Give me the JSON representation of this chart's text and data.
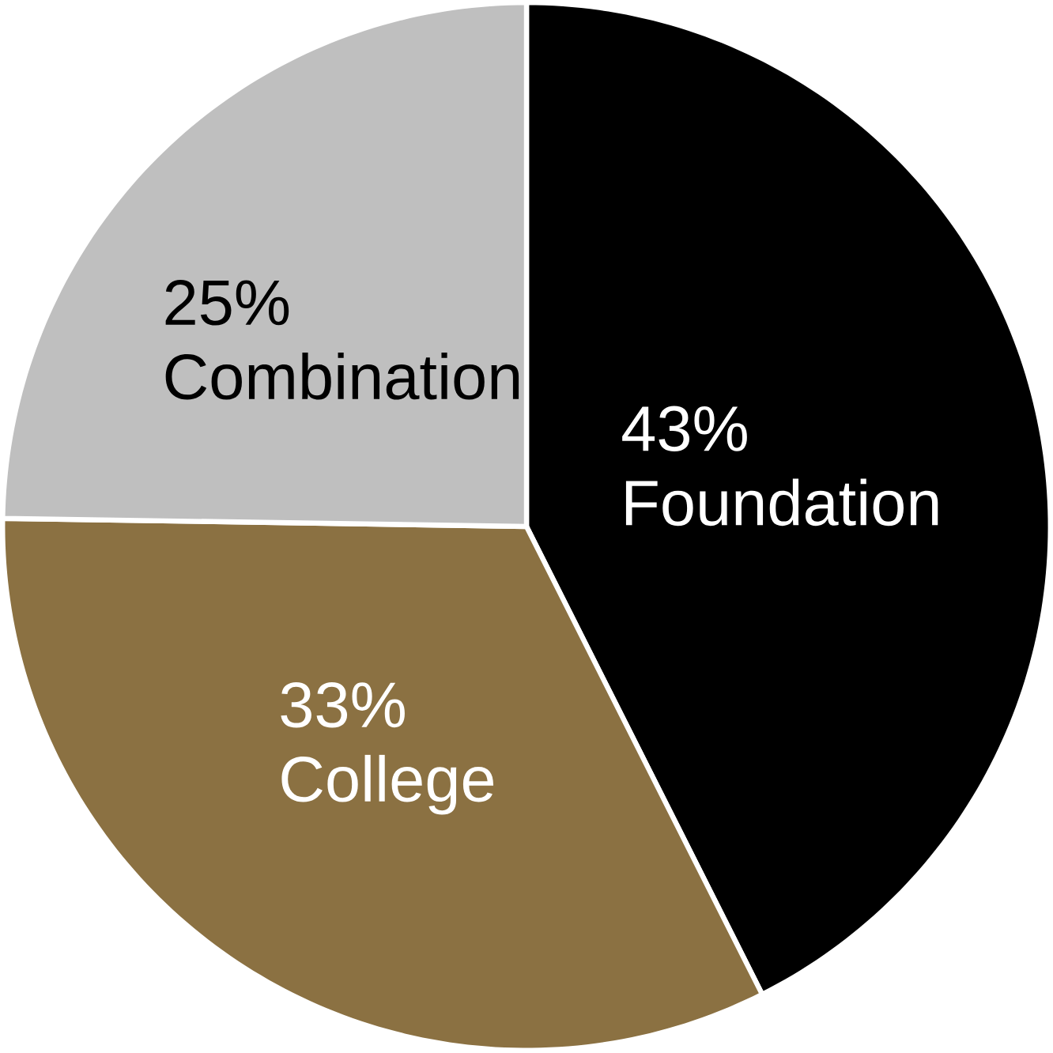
{
  "chart_data": {
    "type": "pie",
    "categories": [
      "Foundation",
      "College",
      "Combination"
    ],
    "values": [
      43,
      33,
      25
    ],
    "value_labels": [
      "43%",
      "33%",
      "25%"
    ],
    "colors": [
      "#000000",
      "#8b7142",
      "#bfbfbf"
    ]
  }
}
